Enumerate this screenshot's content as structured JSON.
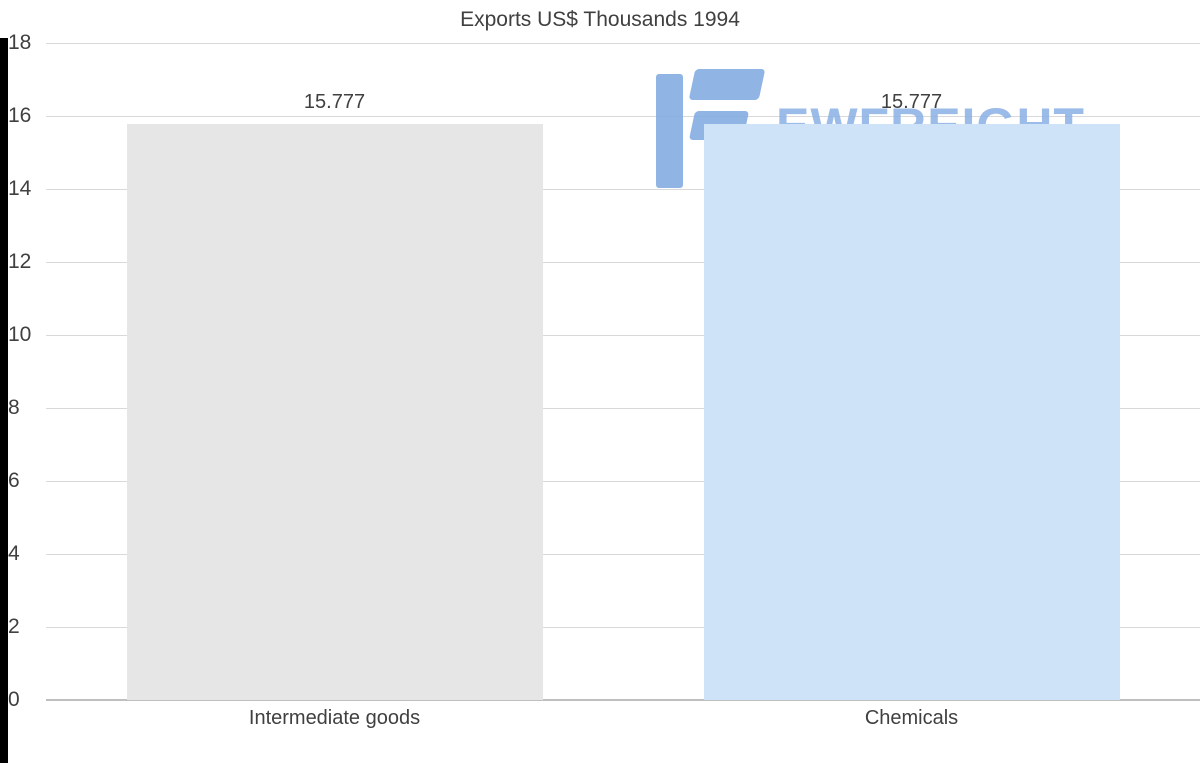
{
  "title": "Exports US$ Thousands 1994",
  "watermark": {
    "text": "EWFREIGHT"
  },
  "colors": {
    "grid": "#d9d9d9",
    "axis_line": "#bfbfbf",
    "text": "#404040",
    "watermark_blue": "#7da9e0"
  },
  "chart_data": {
    "type": "bar",
    "title": "Exports US$ Thousands 1994",
    "categories": [
      "Intermediate goods",
      "Chemicals"
    ],
    "values": [
      15.777,
      15.777
    ],
    "data_labels": [
      "15.777",
      "15.777"
    ],
    "bar_colors": [
      "#e6e6e6",
      "#cfe3f8"
    ],
    "xlabel": "",
    "ylabel": "",
    "ylim": [
      0,
      18
    ],
    "yticks": [
      0,
      2,
      4,
      6,
      8,
      10,
      12,
      14,
      16,
      18
    ],
    "grid": true,
    "legend": false
  }
}
